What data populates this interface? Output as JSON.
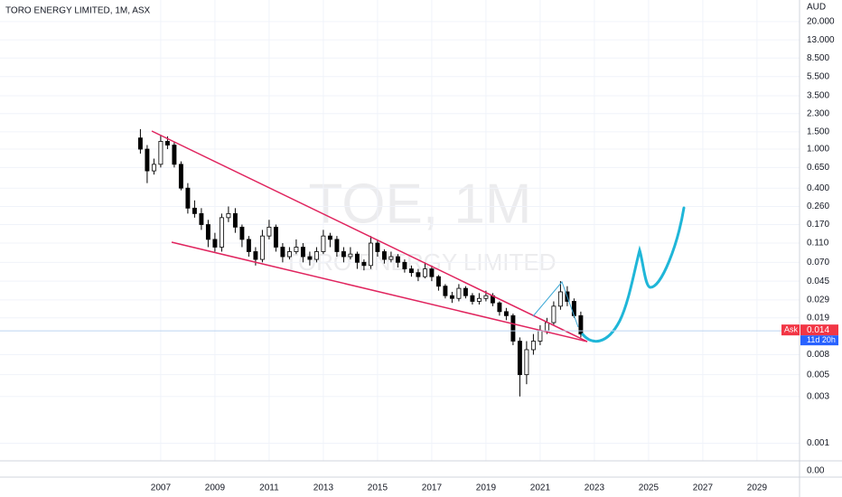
{
  "chart_data": {
    "type": "candlestick",
    "title": "TORO ENERGY LIMITED, 1M, ASX",
    "currency": "AUD",
    "watermark": "TOE, 1M",
    "watermark_subtitle": "TORO ENERGY LIMITED",
    "log_scale": true,
    "grid": true,
    "up_color": "#ffffff",
    "down_color": "#000000",
    "x": [
      2006.25,
      2006.5,
      2006.75,
      2007,
      2007.25,
      2007.5,
      2007.75,
      2008,
      2008.25,
      2008.5,
      2008.75,
      2009,
      2009.25,
      2009.5,
      2009.75,
      2010,
      2010.25,
      2010.5,
      2010.75,
      2011,
      2011.25,
      2011.5,
      2011.75,
      2012,
      2012.25,
      2012.5,
      2012.75,
      2013,
      2013.25,
      2013.5,
      2013.75,
      2014,
      2014.25,
      2014.5,
      2014.75,
      2015,
      2015.25,
      2015.5,
      2015.75,
      2016,
      2016.25,
      2016.5,
      2016.75,
      2017,
      2017.25,
      2017.5,
      2017.75,
      2018,
      2018.25,
      2018.5,
      2018.75,
      2019,
      2019.25,
      2019.5,
      2019.75,
      2020,
      2020.25,
      2020.5,
      2020.75,
      2021,
      2021.25,
      2021.5,
      2021.75,
      2022,
      2022.25,
      2022.5
    ],
    "open": [
      1.3,
      1.0,
      0.6,
      0.7,
      1.2,
      1.1,
      0.7,
      0.4,
      0.25,
      0.22,
      0.17,
      0.12,
      0.1,
      0.2,
      0.22,
      0.16,
      0.12,
      0.09,
      0.075,
      0.13,
      0.16,
      0.1,
      0.08,
      0.09,
      0.1,
      0.08,
      0.075,
      0.09,
      0.13,
      0.12,
      0.09,
      0.08,
      0.085,
      0.07,
      0.065,
      0.11,
      0.09,
      0.075,
      0.08,
      0.07,
      0.06,
      0.055,
      0.05,
      0.06,
      0.05,
      0.04,
      0.032,
      0.03,
      0.038,
      0.032,
      0.028,
      0.03,
      0.032,
      0.027,
      0.022,
      0.02,
      0.011,
      0.005,
      0.009,
      0.011,
      0.014,
      0.017,
      0.025,
      0.035,
      0.028,
      0.02
    ],
    "high": [
      1.6,
      1.1,
      0.8,
      1.4,
      1.35,
      1.2,
      0.75,
      0.45,
      0.3,
      0.25,
      0.19,
      0.14,
      0.22,
      0.26,
      0.25,
      0.17,
      0.13,
      0.1,
      0.15,
      0.19,
      0.17,
      0.11,
      0.1,
      0.12,
      0.11,
      0.09,
      0.1,
      0.15,
      0.14,
      0.13,
      0.1,
      0.1,
      0.09,
      0.075,
      0.13,
      0.12,
      0.095,
      0.09,
      0.085,
      0.075,
      0.065,
      0.06,
      0.07,
      0.065,
      0.052,
      0.042,
      0.035,
      0.042,
      0.04,
      0.034,
      0.034,
      0.036,
      0.034,
      0.028,
      0.024,
      0.021,
      0.012,
      0.011,
      0.013,
      0.016,
      0.019,
      0.028,
      0.045,
      0.04,
      0.03,
      0.022
    ],
    "low": [
      0.9,
      0.45,
      0.55,
      0.65,
      1.0,
      0.65,
      0.38,
      0.22,
      0.2,
      0.15,
      0.1,
      0.09,
      0.09,
      0.18,
      0.14,
      0.1,
      0.08,
      0.065,
      0.07,
      0.12,
      0.09,
      0.07,
      0.075,
      0.085,
      0.07,
      0.065,
      0.07,
      0.085,
      0.1,
      0.08,
      0.07,
      0.075,
      0.06,
      0.058,
      0.06,
      0.08,
      0.068,
      0.07,
      0.062,
      0.055,
      0.05,
      0.045,
      0.048,
      0.045,
      0.036,
      0.03,
      0.027,
      0.028,
      0.03,
      0.026,
      0.026,
      0.028,
      0.025,
      0.02,
      0.018,
      0.01,
      0.003,
      0.004,
      0.008,
      0.01,
      0.013,
      0.016,
      0.023,
      0.025,
      0.019,
      0.012
    ],
    "close": [
      1.0,
      0.6,
      0.7,
      1.2,
      1.1,
      0.7,
      0.4,
      0.25,
      0.22,
      0.17,
      0.12,
      0.1,
      0.2,
      0.22,
      0.16,
      0.12,
      0.09,
      0.075,
      0.13,
      0.16,
      0.1,
      0.08,
      0.09,
      0.1,
      0.08,
      0.075,
      0.09,
      0.13,
      0.12,
      0.09,
      0.08,
      0.085,
      0.07,
      0.065,
      0.11,
      0.09,
      0.075,
      0.08,
      0.07,
      0.06,
      0.055,
      0.05,
      0.06,
      0.05,
      0.04,
      0.032,
      0.03,
      0.038,
      0.032,
      0.028,
      0.03,
      0.032,
      0.027,
      0.022,
      0.02,
      0.011,
      0.005,
      0.009,
      0.011,
      0.014,
      0.017,
      0.025,
      0.035,
      0.028,
      0.02,
      0.013
    ],
    "xlim": [
      2001.07,
      2030.57
    ],
    "xticks": [
      2007,
      2009,
      2011,
      2013,
      2015,
      2017,
      2019,
      2021,
      2023,
      2025,
      2027,
      2029
    ],
    "ylim": [
      0.000735,
      33.2
    ],
    "yticks": [
      {
        "value": 20,
        "label": "20.000"
      },
      {
        "value": 13,
        "label": "13.000"
      },
      {
        "value": 8.5,
        "label": "8.500"
      },
      {
        "value": 5.5,
        "label": "5.500"
      },
      {
        "value": 3.5,
        "label": "3.500"
      },
      {
        "value": 2.3,
        "label": "2.300"
      },
      {
        "value": 1.5,
        "label": "1.500"
      },
      {
        "value": 1,
        "label": "1.000"
      },
      {
        "value": 0.65,
        "label": "0.650"
      },
      {
        "value": 0.4,
        "label": "0.400"
      },
      {
        "value": 0.26,
        "label": "0.260"
      },
      {
        "value": 0.17,
        "label": "0.170"
      },
      {
        "value": 0.11,
        "label": "0.110"
      },
      {
        "value": 0.07,
        "label": "0.070"
      },
      0.045,
      0.029,
      0.019,
      0.008,
      0.005,
      0.003,
      0.001
    ],
    "lower_pane_tick": "0.00",
    "current_price": {
      "label": "Ask",
      "value": 0.014,
      "countdown": "11d 20h"
    }
  }
}
